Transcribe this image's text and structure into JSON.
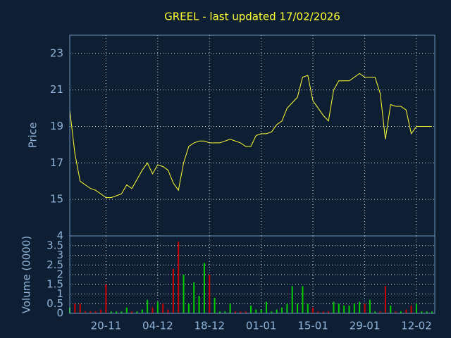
{
  "chart_data": [
    {
      "type": "line",
      "title": "GREEL - last updated 17/02/2026",
      "ylabel": "Price",
      "color": "#ffff33",
      "ylim": [
        13,
        24
      ],
      "yticks": [
        15,
        17,
        19,
        21,
        23
      ],
      "grid": true,
      "values": [
        19.9,
        17.5,
        16.0,
        15.8,
        15.6,
        15.5,
        15.3,
        15.1,
        15.1,
        15.2,
        15.3,
        15.8,
        15.6,
        16.1,
        16.6,
        17.0,
        16.4,
        16.9,
        16.8,
        16.6,
        15.9,
        15.5,
        17.0,
        17.9,
        18.1,
        18.2,
        18.2,
        18.1,
        18.1,
        18.1,
        18.2,
        18.3,
        18.2,
        18.1,
        17.9,
        17.9,
        18.5,
        18.6,
        18.6,
        18.7,
        19.1,
        19.3,
        20.0,
        20.3,
        20.6,
        21.7,
        21.8,
        20.4,
        20.0,
        19.6,
        19.3,
        21.0,
        21.5,
        21.5,
        21.5,
        21.7,
        21.9,
        21.7,
        21.7,
        21.7,
        20.8,
        18.3,
        20.2,
        20.1,
        20.1,
        19.9,
        18.6,
        19.0,
        19.0,
        19.0,
        19.0
      ]
    },
    {
      "type": "bar",
      "ylabel": "Volume (0000)",
      "up_color": "#00cc00",
      "down_color": "#cc0000",
      "ylim": [
        0,
        4
      ],
      "yticks": [
        0,
        0.5,
        1,
        1.5,
        2,
        2.5,
        3,
        3.5,
        4
      ],
      "grid": true,
      "categories": [
        null,
        null,
        null,
        null,
        null,
        null,
        null,
        "20-11",
        null,
        null,
        null,
        null,
        null,
        null,
        null,
        null,
        null,
        "04-12",
        null,
        null,
        null,
        null,
        null,
        null,
        null,
        null,
        null,
        "18-12",
        null,
        null,
        null,
        null,
        null,
        null,
        null,
        null,
        null,
        "01-01",
        null,
        null,
        null,
        null,
        null,
        null,
        null,
        null,
        null,
        "15-01",
        null,
        null,
        null,
        null,
        null,
        null,
        null,
        null,
        null,
        "29-01",
        null,
        null,
        null,
        null,
        null,
        null,
        null,
        null,
        null,
        "12-02",
        null,
        null,
        null
      ],
      "values": [
        0.3,
        0.5,
        0.5,
        0.1,
        0.1,
        0.1,
        0.2,
        1.5,
        0.1,
        0.1,
        0.1,
        0.3,
        0.1,
        0.1,
        0.2,
        0.7,
        0.3,
        0.6,
        0.5,
        0.2,
        2.3,
        3.7,
        2.0,
        0.5,
        1.6,
        0.9,
        2.6,
        2.0,
        0.8,
        0.1,
        0.1,
        0.5,
        0.1,
        0.1,
        0.1,
        0.4,
        0.2,
        0.2,
        0.6,
        0.1,
        0.2,
        0.3,
        0.5,
        1.4,
        0.5,
        1.4,
        0.5,
        0.3,
        0.1,
        0.1,
        0.1,
        0.6,
        0.5,
        0.4,
        0.4,
        0.5,
        0.6,
        0.5,
        0.7,
        0.1,
        0.1,
        1.4,
        0.4,
        0.1,
        0.1,
        0.2,
        0.4,
        0.5,
        0.1,
        0.1,
        0.1
      ]
    }
  ]
}
